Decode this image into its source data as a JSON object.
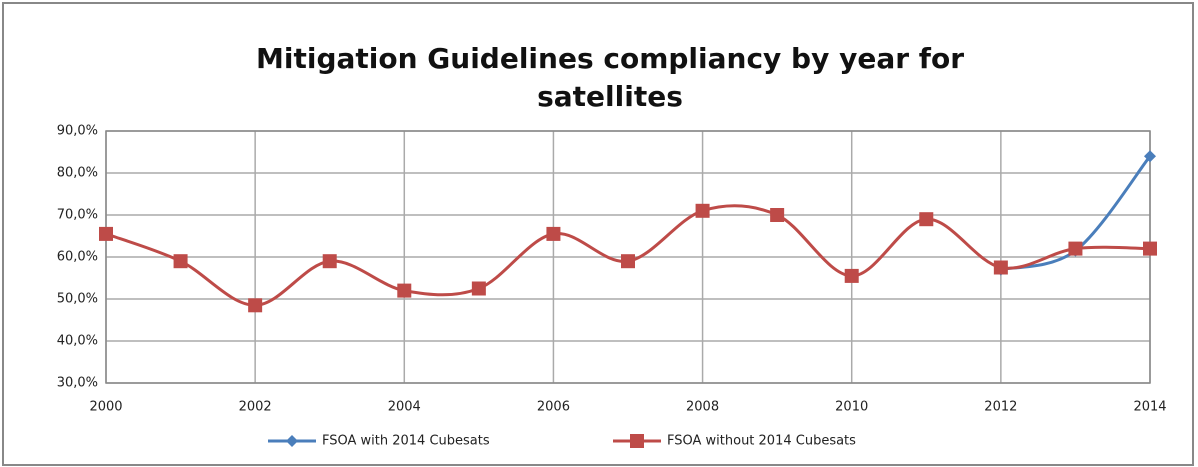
{
  "chart_data": {
    "type": "line",
    "title": "Mitigation Guidelines compliancy by year for satellites",
    "x": [
      2000,
      2001,
      2002,
      2003,
      2004,
      2005,
      2006,
      2007,
      2008,
      2009,
      2010,
      2011,
      2012,
      2013,
      2014
    ],
    "series": [
      {
        "name": "FSOA with 2014 Cubesats",
        "color": "#4a7ebb",
        "marker": "diamond",
        "values": [
          null,
          null,
          null,
          null,
          null,
          null,
          null,
          null,
          null,
          null,
          null,
          null,
          57,
          61.5,
          84
        ]
      },
      {
        "name": "FSOA without 2014 Cubesats",
        "color": "#be4b48",
        "marker": "square",
        "values": [
          65.5,
          59,
          48.5,
          59,
          52,
          52.5,
          65.5,
          59,
          71,
          70,
          55.5,
          69,
          57.5,
          62,
          62
        ]
      }
    ],
    "xlim": [
      2000,
      2014
    ],
    "xticks": [
      2000,
      2002,
      2004,
      2006,
      2008,
      2010,
      2012,
      2014
    ],
    "ylim": [
      30,
      90
    ],
    "yticks": [
      {
        "value": 30,
        "label": "30,0%"
      },
      {
        "value": 40,
        "label": "40,0%"
      },
      {
        "value": 50,
        "label": "50,0%"
      },
      {
        "value": 60,
        "label": "60,0%"
      },
      {
        "value": 70,
        "label": "70,0%"
      },
      {
        "value": 80,
        "label": "80,0%"
      },
      {
        "value": 90,
        "label": "90,0%"
      }
    ],
    "grid": true,
    "smooth": true,
    "legend": "bottom"
  }
}
